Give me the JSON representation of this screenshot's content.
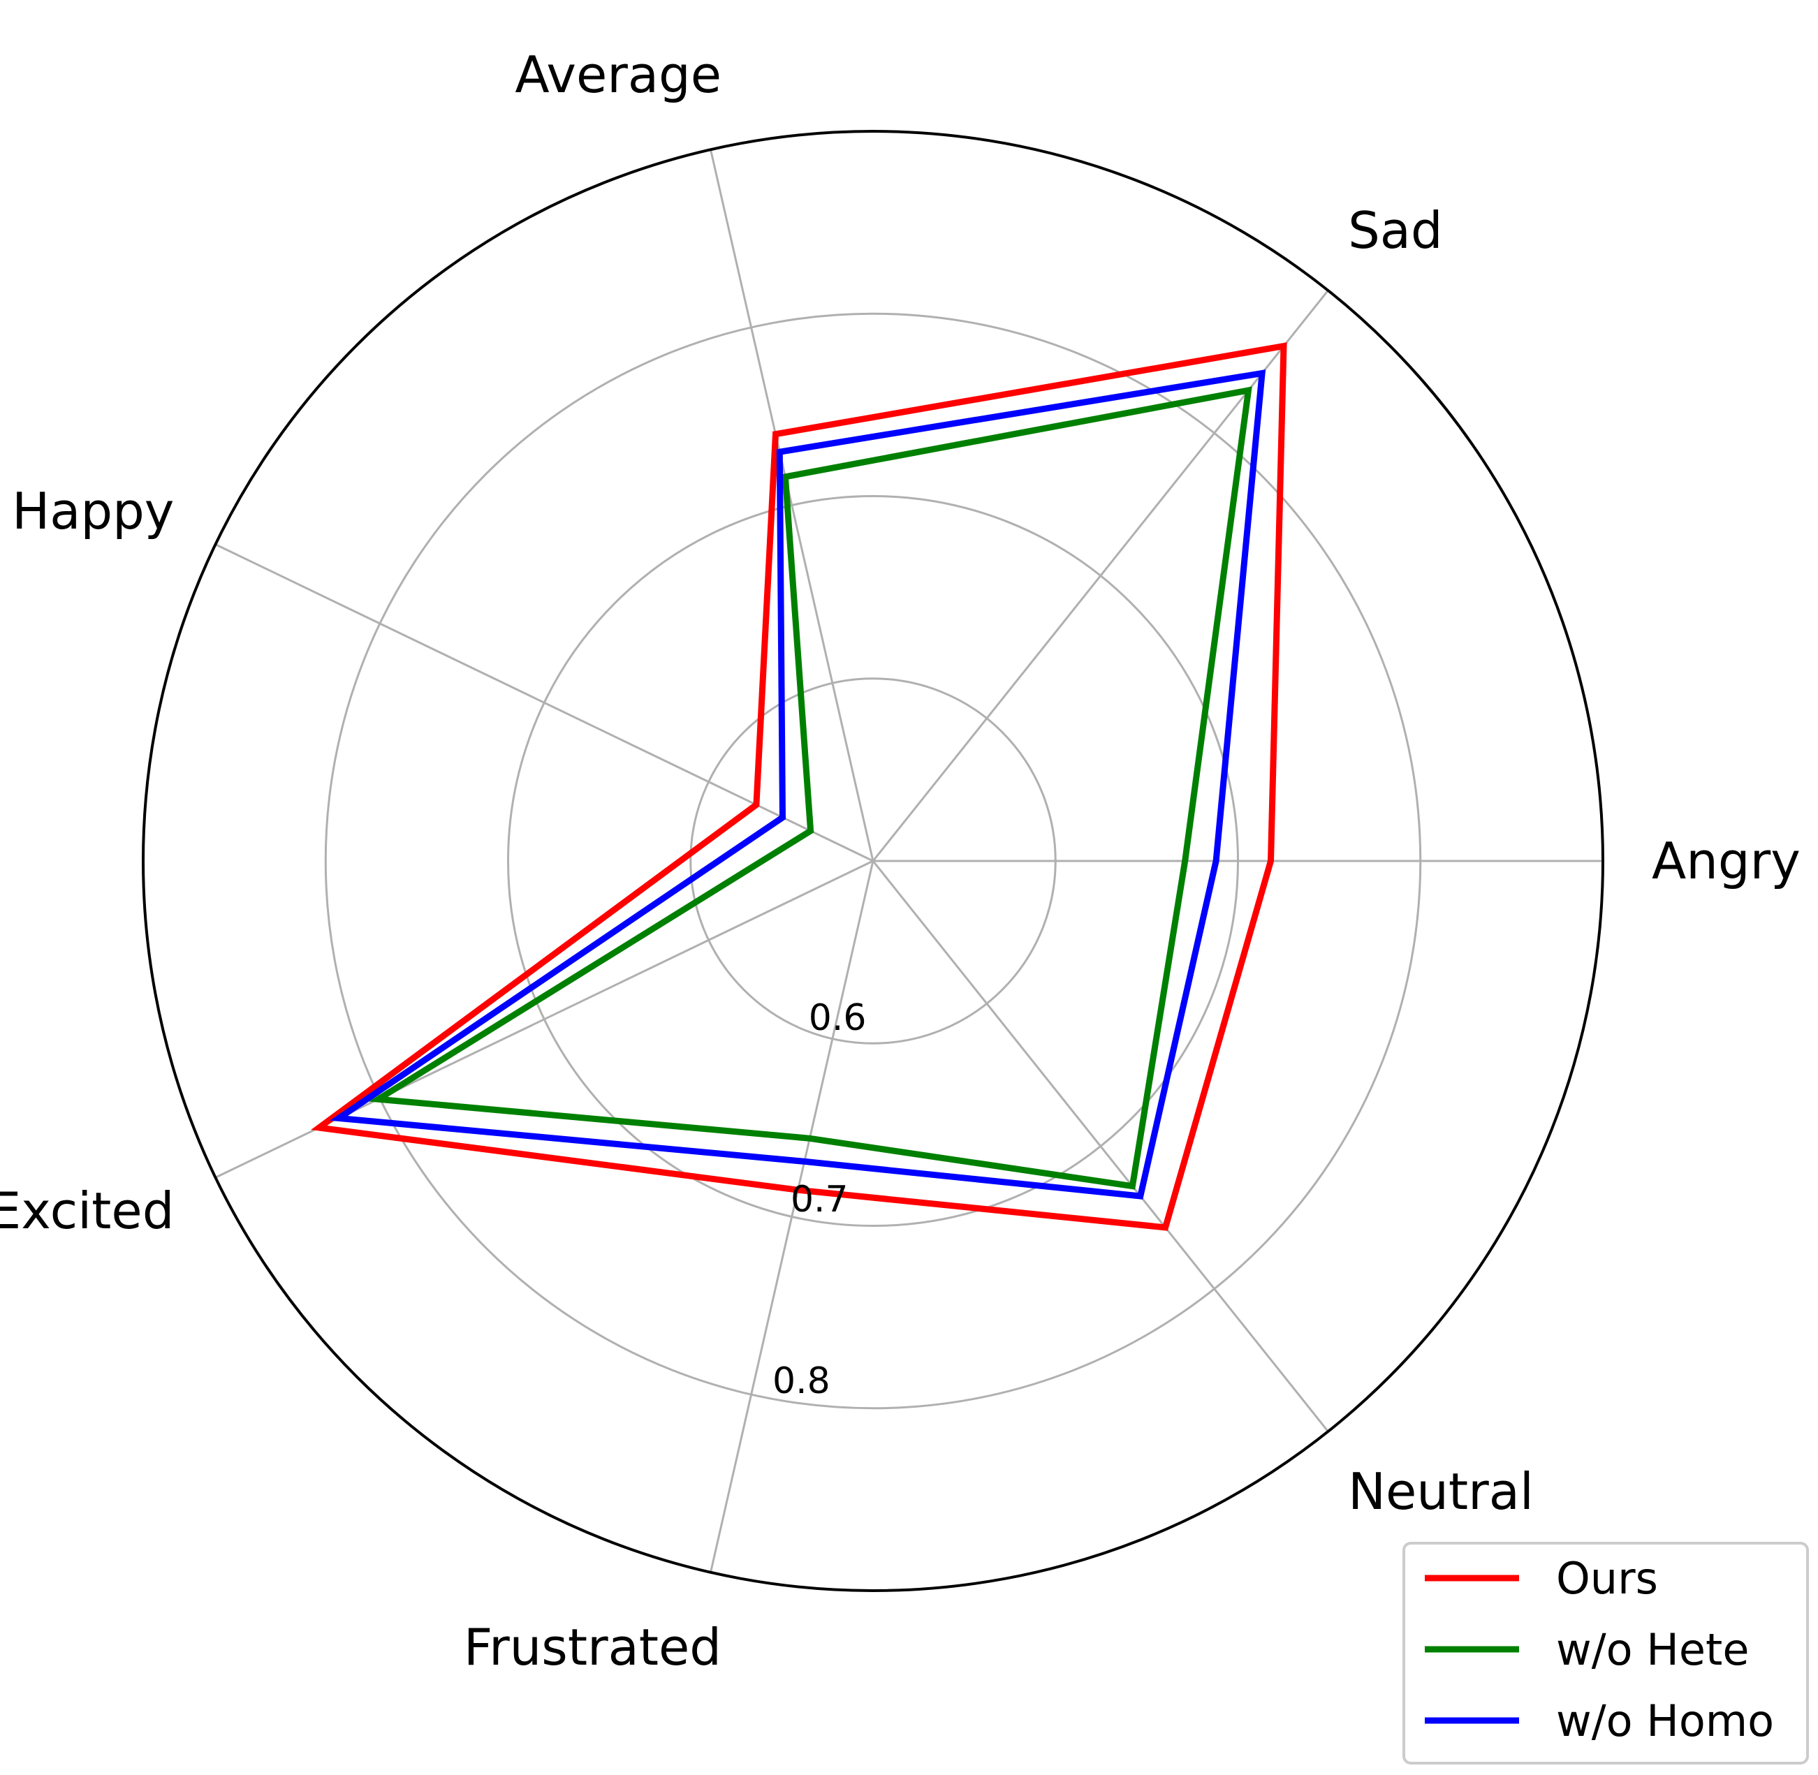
{
  "chart_data": {
    "type": "radar",
    "categories": [
      "Angry",
      "Sad",
      "Average",
      "Happy",
      "Excited",
      "Frustrated",
      "Neutral"
    ],
    "radial_range": [
      0.5,
      0.9
    ],
    "radial_ticks": [
      0.6,
      0.7,
      0.8
    ],
    "grid": true,
    "legend_position": "bottom-right",
    "series": [
      {
        "name": "Ours",
        "color": "#ff0000",
        "values": [
          0.718,
          0.861,
          0.74,
          0.571,
          0.837,
          0.685,
          0.757
        ]
      },
      {
        "name": "w/o Hete",
        "color": "#008000",
        "values": [
          0.671,
          0.83,
          0.716,
          0.538,
          0.801,
          0.656,
          0.728
        ]
      },
      {
        "name": "w/o Homo",
        "color": "#0000ff",
        "values": [
          0.688,
          0.842,
          0.73,
          0.555,
          0.825,
          0.669,
          0.735
        ]
      }
    ]
  }
}
